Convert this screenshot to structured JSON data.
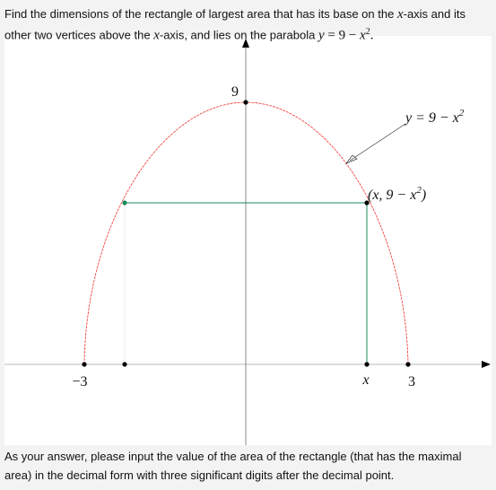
{
  "question": {
    "parts": [
      "Find the dimensions of the rectangle of largest area that has its base on the ",
      "x",
      "-axis and its other two vertices above the ",
      "x",
      "-axis, and lies on the parabola ",
      "y",
      " = 9 − ",
      "x",
      "2",
      "."
    ]
  },
  "figure": {
    "labels": {
      "y_intercept": "9",
      "curve": [
        "y = 9 − x",
        "2"
      ],
      "point": [
        "(x, 9 − x",
        "2",
        ")"
      ],
      "left_root": "−3",
      "x_point": "x",
      "right_root": "3"
    }
  },
  "footer": {
    "text": "As your answer, please input the value of the area of the rectangle (that has the maximal area) in the decimal form with three significant digits after the decimal point."
  }
}
